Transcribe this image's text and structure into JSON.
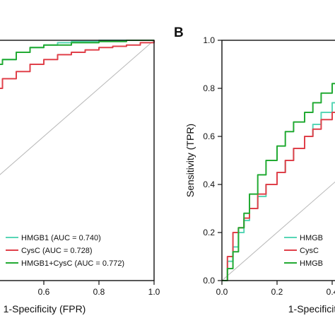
{
  "chart_data": [
    {
      "type": "line",
      "panel_label": "",
      "xlabel": "1-Specificity (FPR)",
      "ylabel": "",
      "xlim": [
        0,
        1
      ],
      "ylim": [
        0,
        1
      ],
      "x_ticks": [
        "0.4",
        "0.6",
        "0.8",
        "1.0"
      ],
      "y_ticks": [],
      "reference_line": true,
      "legend_position": "bottom-right",
      "series": [
        {
          "name": "HMGB1 (AUC = 0.740)",
          "color": "#58d6b6",
          "x": [
            0.0,
            0.02,
            0.05,
            0.08,
            0.12,
            0.16,
            0.2,
            0.25,
            0.3,
            0.35,
            0.4,
            0.45,
            0.5,
            0.55,
            0.6,
            0.65,
            0.7,
            0.8,
            0.9,
            1.0
          ],
          "y": [
            0.58,
            0.6,
            0.64,
            0.66,
            0.7,
            0.73,
            0.76,
            0.79,
            0.84,
            0.87,
            0.9,
            0.92,
            0.95,
            0.97,
            0.98,
            0.99,
            0.995,
            1.0,
            1.0,
            1.0
          ]
        },
        {
          "name": "CysC (AUC = 0.728)",
          "color": "#e0404a",
          "x": [
            0.0,
            0.05,
            0.1,
            0.15,
            0.2,
            0.25,
            0.3,
            0.35,
            0.4,
            0.45,
            0.5,
            0.55,
            0.6,
            0.65,
            0.7,
            0.75,
            0.8,
            0.85,
            0.9,
            0.95,
            1.0
          ],
          "y": [
            0.62,
            0.65,
            0.68,
            0.7,
            0.72,
            0.74,
            0.75,
            0.77,
            0.8,
            0.84,
            0.87,
            0.9,
            0.92,
            0.94,
            0.95,
            0.96,
            0.97,
            0.975,
            0.98,
            0.99,
            1.0
          ]
        },
        {
          "name": "HMGB1+CysC (AUC = 0.772)",
          "color": "#22aa33",
          "x": [
            0.0,
            0.02,
            0.05,
            0.08,
            0.12,
            0.16,
            0.2,
            0.25,
            0.3,
            0.35,
            0.4,
            0.45,
            0.5,
            0.55,
            0.6,
            0.7,
            0.8,
            0.9,
            1.0
          ],
          "y": [
            0.62,
            0.65,
            0.68,
            0.7,
            0.73,
            0.76,
            0.78,
            0.8,
            0.85,
            0.88,
            0.9,
            0.92,
            0.95,
            0.97,
            0.98,
            0.99,
            0.995,
            1.0,
            1.0
          ]
        }
      ]
    },
    {
      "type": "line",
      "panel_label": "B",
      "xlabel": "1-Specificit",
      "ylabel": "Sensitivity (TPR)",
      "xlim": [
        0,
        1
      ],
      "ylim": [
        0,
        1
      ],
      "x_ticks": [
        "0.0",
        "0.2",
        "0.4"
      ],
      "y_ticks": [
        "0.0",
        "0.2",
        "0.4",
        "0.6",
        "0.8",
        "1.0"
      ],
      "reference_line": true,
      "legend_position": "bottom-right",
      "series": [
        {
          "name": "HMGB",
          "color": "#58d6b6",
          "x": [
            0.0,
            0.02,
            0.04,
            0.06,
            0.08,
            0.1,
            0.13,
            0.16,
            0.2,
            0.23,
            0.26,
            0.3,
            0.33,
            0.36,
            0.4,
            0.43,
            0.46,
            0.5,
            0.53,
            0.56
          ],
          "y": [
            0.0,
            0.08,
            0.14,
            0.2,
            0.25,
            0.3,
            0.35,
            0.4,
            0.45,
            0.5,
            0.55,
            0.6,
            0.65,
            0.7,
            0.74,
            0.77,
            0.8,
            0.83,
            0.86,
            0.88
          ]
        },
        {
          "name": "CysC",
          "color": "#e0404a",
          "x": [
            0.0,
            0.02,
            0.04,
            0.06,
            0.08,
            0.1,
            0.13,
            0.16,
            0.2,
            0.23,
            0.26,
            0.3,
            0.33,
            0.36,
            0.4,
            0.43,
            0.46,
            0.5,
            0.53,
            0.56
          ],
          "y": [
            0.0,
            0.1,
            0.2,
            0.22,
            0.26,
            0.3,
            0.36,
            0.4,
            0.45,
            0.5,
            0.55,
            0.6,
            0.63,
            0.67,
            0.7,
            0.72,
            0.74,
            0.76,
            0.78,
            0.8
          ]
        },
        {
          "name": "HMGB",
          "color": "#22aa33",
          "x": [
            0.0,
            0.02,
            0.04,
            0.06,
            0.08,
            0.1,
            0.13,
            0.16,
            0.2,
            0.23,
            0.26,
            0.3,
            0.33,
            0.36,
            0.4,
            0.43,
            0.46,
            0.5,
            0.53,
            0.56
          ],
          "y": [
            0.0,
            0.05,
            0.12,
            0.22,
            0.28,
            0.36,
            0.44,
            0.5,
            0.56,
            0.62,
            0.66,
            0.7,
            0.74,
            0.78,
            0.82,
            0.86,
            0.88,
            0.9,
            0.92,
            0.94
          ]
        }
      ]
    }
  ]
}
